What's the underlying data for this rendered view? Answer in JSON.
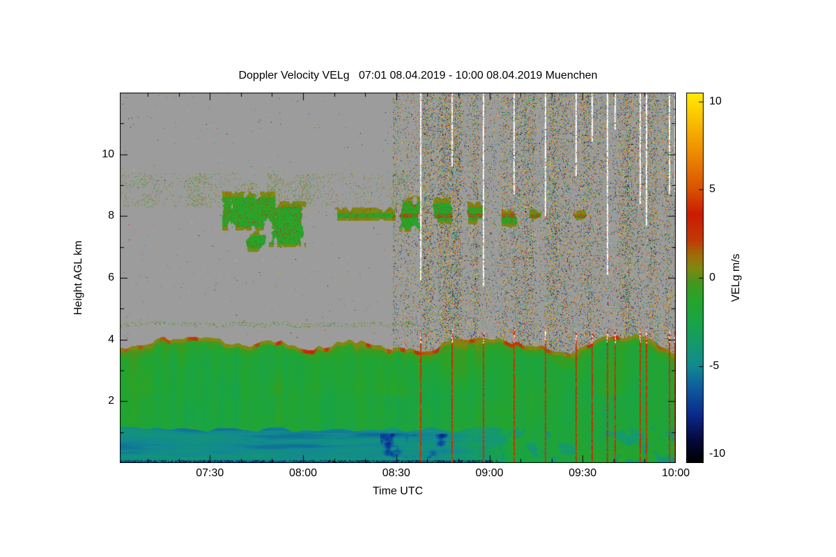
{
  "page": {
    "background": "#ffffff"
  },
  "chart_data": {
    "type": "heatmap",
    "title": "Doppler Velocity VELg   07:01 08.04.2019 - 10:00 08.04.2019 Muenchen",
    "xlabel": "Time UTC",
    "ylabel": "Height AGL km",
    "x_axis": {
      "start_label": "07:01",
      "end_label": "10:00",
      "range_minutes": [
        0,
        179
      ],
      "ticks": [
        {
          "label": "07:30",
          "minute": 29
        },
        {
          "label": "08:00",
          "minute": 59
        },
        {
          "label": "08:30",
          "minute": 89
        },
        {
          "label": "09:00",
          "minute": 119
        },
        {
          "label": "09:30",
          "minute": 149
        },
        {
          "label": "10:00",
          "minute": 179
        }
      ],
      "minor_tick_every_minutes": 10
    },
    "y_axis": {
      "range_km": [
        0,
        12
      ],
      "ticks": [
        2,
        4,
        6,
        8,
        10
      ],
      "minor_tick_every_km": 1
    },
    "colorbar": {
      "label": "VELg m/s",
      "range": [
        -10.5,
        10.5
      ],
      "ticks": [
        10,
        5,
        0,
        -5,
        -10
      ],
      "colormap_stops": [
        [
          -10.5,
          "#000000"
        ],
        [
          -9.2,
          "#06093c"
        ],
        [
          -7.8,
          "#0b2a8c"
        ],
        [
          -6.3,
          "#0e5a9e"
        ],
        [
          -5.0,
          "#128a90"
        ],
        [
          -3.8,
          "#15996f"
        ],
        [
          -2.6,
          "#18a448"
        ],
        [
          -1.2,
          "#27a52c"
        ],
        [
          -0.3,
          "#46971d"
        ],
        [
          0.5,
          "#7f8a12"
        ],
        [
          1.3,
          "#a06c08"
        ],
        [
          2.1,
          "#c03c05"
        ],
        [
          3.6,
          "#cb1c03"
        ],
        [
          5.0,
          "#d85200"
        ],
        [
          6.6,
          "#ea7e00"
        ],
        [
          8.2,
          "#f6ab00"
        ],
        [
          9.6,
          "#fdd400"
        ],
        [
          10.5,
          "#ffec00"
        ]
      ]
    },
    "no_data_color": "#9c9c9c",
    "features": {
      "noise_region": {
        "start_minute": 88,
        "density_min": 0.08,
        "density_max": 0.32
      },
      "boundary_layer": {
        "top_km_mean": 3.78,
        "top_km_min": 3.45,
        "top_km_max": 4.22,
        "typical_velocity_ms": -1.7,
        "top_shear_velocity_ms": 2.5,
        "teal_band": {
          "top_km": 1.1,
          "end_minute": 126,
          "velocity_ms": -4.8,
          "dark_patch_minutes": [
            84,
            106
          ],
          "dark_patch_velocity_ms": -8.0
        },
        "bottom_dark_end_minute": 122,
        "detached_line_km": 4.5,
        "detached_line_end_minute": 96
      },
      "mid_cloud_band": {
        "sparse_strip": {
          "t0": 1,
          "t1": 96,
          "h0": 8.3,
          "h1": 9.4,
          "velocity_ms": 0.7
        },
        "blobs": [
          {
            "t0": 33,
            "t1": 50,
            "h0": 7.55,
            "h1": 8.8,
            "seed": 1
          },
          {
            "t0": 48,
            "t1": 60,
            "h0": 7.0,
            "h1": 8.5,
            "seed": 2
          },
          {
            "t0": 40,
            "t1": 47,
            "h0": 6.85,
            "h1": 7.55,
            "seed": 3,
            "sparse": true
          },
          {
            "t0": 69,
            "t1": 90,
            "h0": 7.85,
            "h1": 8.3,
            "seed": 4
          },
          {
            "t0": 90,
            "t1": 97,
            "h0": 7.5,
            "h1": 8.65,
            "seed": 5
          },
          {
            "t0": 101,
            "t1": 107,
            "h0": 7.75,
            "h1": 8.6,
            "seed": 6
          },
          {
            "t0": 112,
            "t1": 118,
            "h0": 7.75,
            "h1": 8.5,
            "seed": 7
          },
          {
            "t0": 123,
            "t1": 128,
            "h0": 7.65,
            "h1": 8.25,
            "seed": 8
          },
          {
            "t0": 132,
            "t1": 136,
            "h0": 7.85,
            "h1": 8.25,
            "seed": 9
          },
          {
            "t0": 146,
            "t1": 150,
            "h0": 7.85,
            "h1": 8.2,
            "seed": 10
          }
        ]
      },
      "vertical_streaks": [
        {
          "m": 97,
          "white_to_km": 5.9,
          "red": true
        },
        {
          "m": 107,
          "white_to_km": 9.6,
          "red": true
        },
        {
          "m": 117,
          "white_to_km": 5.7,
          "red": true
        },
        {
          "m": 127,
          "white_to_km": 8.7,
          "red": true
        },
        {
          "m": 137,
          "white_to_km": 8.0,
          "red": true
        },
        {
          "m": 147,
          "white_to_km": 9.3,
          "red": true
        },
        {
          "m": 152,
          "white_to_km": 10.4,
          "red": true
        },
        {
          "m": 157,
          "white_to_km": 6.1,
          "red": true
        },
        {
          "m": 159.5,
          "white_to_km": 10.8,
          "red": true
        },
        {
          "m": 167.5,
          "white_to_km": 8.4,
          "red": true
        },
        {
          "m": 169.5,
          "white_to_km": 7.7,
          "red": true
        },
        {
          "m": 177,
          "white_to_km": 8.7,
          "red": true
        },
        {
          "m": 178.8,
          "white_to_km": 8.6,
          "red": true
        }
      ]
    }
  }
}
